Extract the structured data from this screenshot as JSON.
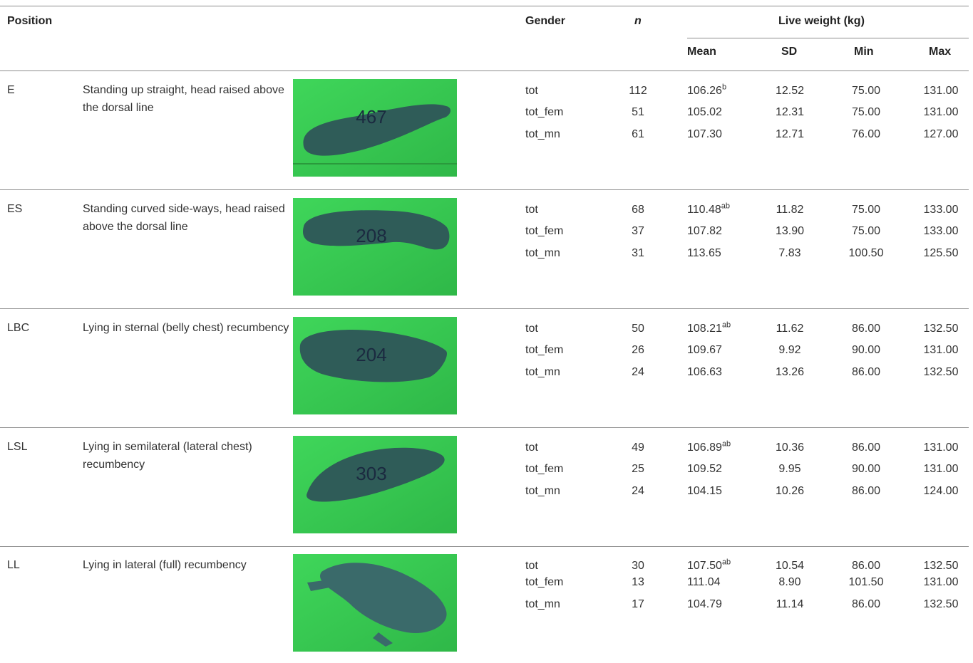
{
  "headers": {
    "position": "Position",
    "gender": "Gender",
    "n": "n",
    "live_weight": "Live weight (kg)",
    "mean": "Mean",
    "sd": "SD",
    "min": "Min",
    "max": "Max"
  },
  "rows": [
    {
      "code": "E",
      "description": "Standing up straight, head raised above the dorsal line",
      "marking": "467",
      "stats": [
        {
          "gender": "tot",
          "n": "112",
          "mean": "106.26",
          "sup": "b",
          "sd": "12.52",
          "min": "75.00",
          "max": "131.00"
        },
        {
          "gender": "tot_fem",
          "n": "51",
          "mean": "105.02",
          "sup": "",
          "sd": "12.31",
          "min": "75.00",
          "max": "131.00"
        },
        {
          "gender": "tot_mn",
          "n": "61",
          "mean": "107.30",
          "sup": "",
          "sd": "12.71",
          "min": "76.00",
          "max": "127.00"
        }
      ]
    },
    {
      "code": "ES",
      "description": "Standing curved side-ways, head raised above the dorsal line",
      "marking": "208",
      "stats": [
        {
          "gender": "tot",
          "n": "68",
          "mean": "110.48",
          "sup": "ab",
          "sd": "11.82",
          "min": "75.00",
          "max": "133.00"
        },
        {
          "gender": "tot_fem",
          "n": "37",
          "mean": "107.82",
          "sup": "",
          "sd": "13.90",
          "min": "75.00",
          "max": "133.00"
        },
        {
          "gender": "tot_mn",
          "n": "31",
          "mean": "113.65",
          "sup": "",
          "sd": "7.83",
          "min": "100.50",
          "max": "125.50"
        }
      ]
    },
    {
      "code": "LBC",
      "description": "Lying in sternal (belly chest) recumbency",
      "marking": "204",
      "stats": [
        {
          "gender": "tot",
          "n": "50",
          "mean": "108.21",
          "sup": "ab",
          "sd": "11.62",
          "min": "86.00",
          "max": "132.50"
        },
        {
          "gender": "tot_fem",
          "n": "26",
          "mean": "109.67",
          "sup": "",
          "sd": "9.92",
          "min": "90.00",
          "max": "131.00"
        },
        {
          "gender": "tot_mn",
          "n": "24",
          "mean": "106.63",
          "sup": "",
          "sd": "13.26",
          "min": "86.00",
          "max": "132.50"
        }
      ]
    },
    {
      "code": "LSL",
      "description": "Lying in semilateral (lateral chest) recumbency",
      "marking": "303",
      "stats": [
        {
          "gender": "tot",
          "n": "49",
          "mean": "106.89",
          "sup": "ab",
          "sd": "10.36",
          "min": "86.00",
          "max": "131.00"
        },
        {
          "gender": "tot_fem",
          "n": "25",
          "mean": "109.52",
          "sup": "",
          "sd": "9.95",
          "min": "90.00",
          "max": "131.00"
        },
        {
          "gender": "tot_mn",
          "n": "24",
          "mean": "104.15",
          "sup": "",
          "sd": "10.26",
          "min": "86.00",
          "max": "124.00"
        }
      ]
    },
    {
      "code": "LL",
      "description": "Lying in lateral (full) recumbency",
      "marking": "",
      "stats": [
        {
          "gender": "tot",
          "n": "30",
          "mean": "107.50",
          "sup": "ab",
          "sd": "10.54",
          "min": "86.00",
          "max": "132.50"
        },
        {
          "gender": "tot_fem",
          "n": "13",
          "mean": "111.04",
          "sup": "",
          "sd": "8.90",
          "min": "101.50",
          "max": "131.00"
        },
        {
          "gender": "tot_mn",
          "n": "17",
          "mean": "104.79",
          "sup": "",
          "sd": "11.14",
          "min": "86.00",
          "max": "132.50"
        }
      ]
    }
  ],
  "colors": {
    "photo_background": "#3fd65a",
    "pig_body": "#2f5c58",
    "rule": "#8c8c8c"
  }
}
